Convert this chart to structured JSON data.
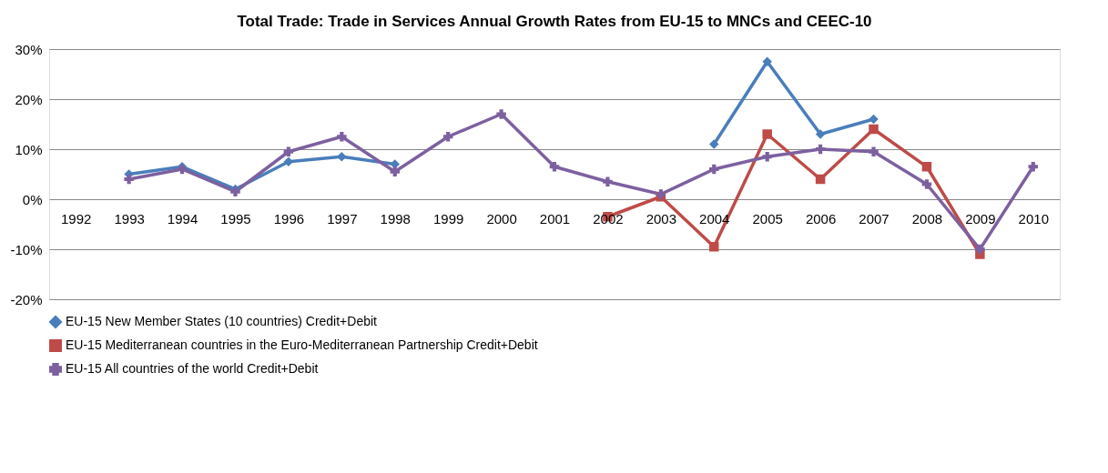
{
  "chart_data": {
    "type": "line",
    "title": "Total Trade: Trade in Services Annual Growth Rates from EU-15 to MNCs and CEEC-10",
    "categories": [
      "1992",
      "1993",
      "1994",
      "1995",
      "1996",
      "1997",
      "1998",
      "1999",
      "2000",
      "2001",
      "2002",
      "2003",
      "2004",
      "2005",
      "2006",
      "2007",
      "2008",
      "2009",
      "2010"
    ],
    "series": [
      {
        "name": "EU-15 New Member States (10 countries) Credit+Debit",
        "color": "#4a7ebb",
        "marker": "diamond",
        "values": [
          null,
          5,
          6.5,
          2,
          7.5,
          8.5,
          7,
          null,
          null,
          null,
          null,
          null,
          11,
          27.5,
          13,
          16,
          null,
          null,
          null
        ]
      },
      {
        "name": "EU-15 Mediterranean countries in the Euro-Mediterranean Partnership Credit+Debit",
        "color": "#be4b48",
        "marker": "square",
        "values": [
          null,
          null,
          null,
          null,
          null,
          null,
          null,
          null,
          null,
          null,
          -3.5,
          0.5,
          -9.5,
          13,
          4,
          14,
          6.5,
          -11,
          null
        ]
      },
      {
        "name": "EU-15 All countries of the world Credit+Debit",
        "color": "#7d60a0",
        "marker": "cross",
        "values": [
          null,
          4,
          6,
          1.5,
          9.5,
          12.5,
          5.5,
          12.5,
          17,
          6.5,
          3.5,
          1,
          6,
          8.5,
          10,
          9.5,
          3,
          -10,
          6.5
        ]
      }
    ],
    "ylim": [
      -20,
      30
    ],
    "yticks": [
      {
        "value": -20,
        "label": "-20%"
      },
      {
        "value": -10,
        "label": "-10%"
      },
      {
        "value": 0,
        "label": "0%"
      },
      {
        "value": 10,
        "label": "10%"
      },
      {
        "value": 20,
        "label": "20%"
      },
      {
        "value": 30,
        "label": "30%"
      }
    ],
    "grid": "y",
    "legend": "bottom"
  }
}
